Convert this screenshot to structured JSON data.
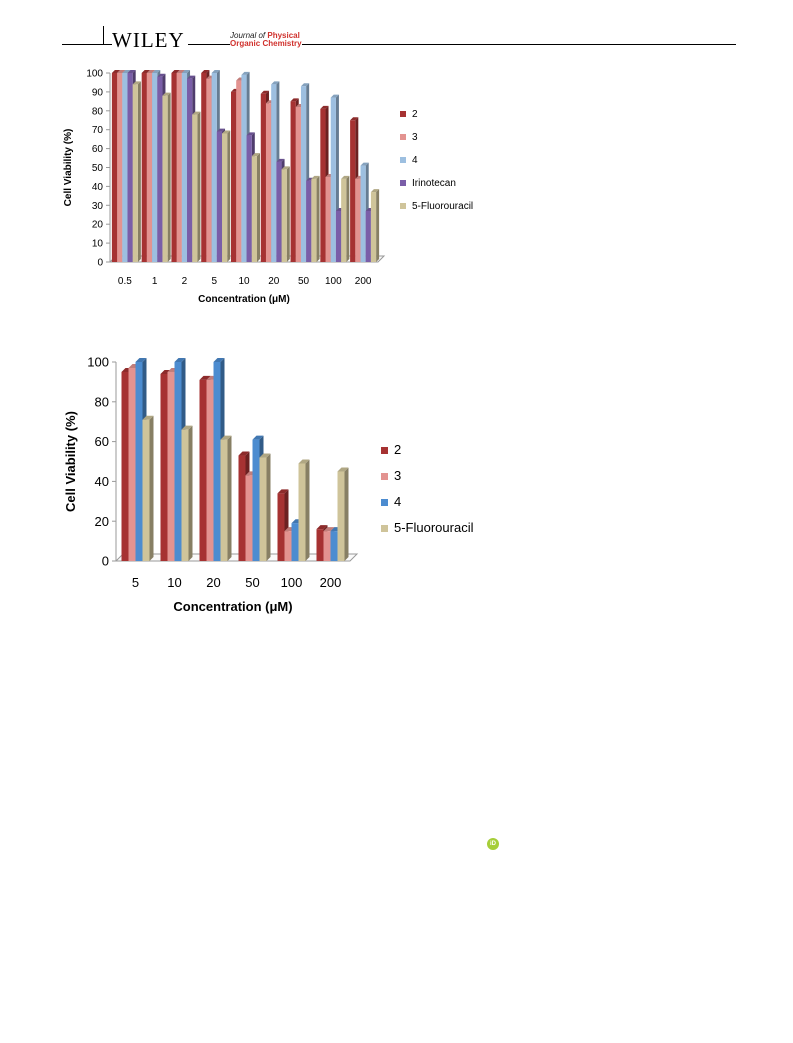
{
  "header": {
    "publisher": "WILEY",
    "journal_line1": "Journal of",
    "journal_line1b": "Physical",
    "journal_line2": "Organic Chemistry"
  },
  "orcid_icon": "orcid-icon",
  "colors": {
    "s2": "#a63232",
    "s3": "#e39390",
    "s4_top": "#9dbfe0",
    "s4_bottom": "#4c8cd0",
    "irinotecan": "#7a5ea8",
    "fluorouracil": "#cfc49a"
  },
  "chart_data": [
    {
      "type": "bar",
      "title": "",
      "xlabel": "Concentration (μM)",
      "ylabel": "Cell Viability (%)",
      "ylim": [
        0,
        100
      ],
      "yticks": [
        "0",
        "10",
        "20",
        "30",
        "40",
        "50",
        "60",
        "70",
        "80",
        "90",
        "100"
      ],
      "categories": [
        "0.5",
        "1",
        "2",
        "5",
        "10",
        "20",
        "50",
        "100",
        "200"
      ],
      "legend_placement": "right",
      "series": [
        {
          "name": "2",
          "values": [
            100,
            100,
            100,
            100,
            90,
            89,
            85,
            81,
            75
          ]
        },
        {
          "name": "3",
          "values": [
            100,
            100,
            100,
            97,
            96,
            84,
            82,
            45,
            44
          ]
        },
        {
          "name": "4",
          "values": [
            100,
            100,
            100,
            100,
            99,
            94,
            93,
            87,
            51
          ]
        },
        {
          "name": "Irinotecan",
          "values": [
            100,
            98,
            97,
            69,
            67,
            53,
            43,
            27,
            27
          ]
        },
        {
          "name": "5-Fluorouracil",
          "values": [
            94,
            88,
            78,
            68,
            56,
            49,
            44,
            44,
            37
          ]
        }
      ]
    },
    {
      "type": "bar",
      "title": "",
      "xlabel": "Concentration (μM)",
      "ylabel": "Cell Viability (%)",
      "ylim": [
        0,
        100
      ],
      "yticks": [
        "0",
        "20",
        "40",
        "60",
        "80",
        "100"
      ],
      "categories": [
        "5",
        "10",
        "20",
        "50",
        "100",
        "200"
      ],
      "legend_placement": "right",
      "series": [
        {
          "name": "2",
          "values": [
            95,
            94,
            91,
            53,
            34,
            16
          ]
        },
        {
          "name": "3",
          "values": [
            97,
            95,
            91,
            43,
            15,
            15
          ]
        },
        {
          "name": "4",
          "values": [
            100,
            100,
            100,
            61,
            19,
            15
          ]
        },
        {
          "name": "5-Fluorouracil",
          "values": [
            71,
            66,
            61,
            52,
            49,
            45
          ]
        }
      ]
    }
  ]
}
